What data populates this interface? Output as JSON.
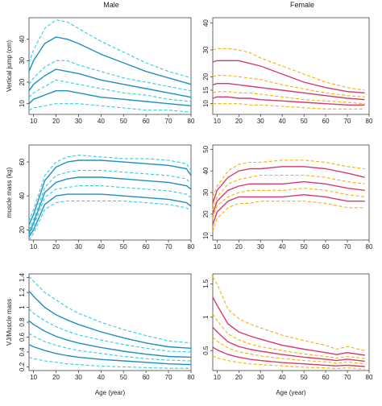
{
  "columns": {
    "male": "Male",
    "female": "Female"
  },
  "colors": {
    "male_solid": "#1f8fc0",
    "male_dashed": "#2ad0e0",
    "female_solid": "#d63a6e",
    "female_dashed": "#f2b400"
  },
  "chart_data": [
    {
      "type": "line",
      "panel": "male-vertical-jump",
      "ylabel": "Vertical jump (cm)",
      "xlabel": "",
      "xlim": [
        8,
        80
      ],
      "ylim": [
        5,
        50
      ],
      "xticks": [
        10,
        20,
        30,
        40,
        50,
        60,
        70,
        80
      ],
      "yticks": [
        10,
        20,
        30,
        40
      ],
      "x": [
        8,
        10,
        15,
        20,
        25,
        30,
        40,
        50,
        60,
        70,
        80
      ],
      "series": [
        {
          "style": "dashed",
          "values": [
            29,
            35,
            45,
            49,
            48,
            45,
            39,
            34,
            29,
            25,
            22
          ]
        },
        {
          "style": "solid",
          "values": [
            25,
            30,
            38,
            41,
            40,
            38,
            33,
            29,
            25,
            22,
            19
          ]
        },
        {
          "style": "dashed",
          "values": [
            19,
            22,
            27,
            30,
            30,
            28,
            25,
            22,
            20,
            18,
            16
          ]
        },
        {
          "style": "solid",
          "values": [
            16,
            19,
            23,
            26,
            25,
            24,
            21,
            19,
            17,
            15,
            13
          ]
        },
        {
          "style": "dashed",
          "values": [
            13,
            15,
            18,
            21,
            20,
            19,
            17,
            15,
            14,
            12,
            11
          ]
        },
        {
          "style": "solid",
          "values": [
            10,
            12,
            14,
            16,
            16,
            15,
            13,
            12,
            11,
            10,
            9
          ]
        },
        {
          "style": "dashed",
          "values": [
            7,
            8,
            9,
            10,
            10,
            10,
            9,
            8,
            7,
            7,
            6
          ]
        }
      ]
    },
    {
      "type": "line",
      "panel": "female-vertical-jump",
      "ylabel": "",
      "xlabel": "",
      "xlim": [
        8,
        80
      ],
      "ylim": [
        6,
        42
      ],
      "xticks": [
        10,
        20,
        30,
        40,
        50,
        60,
        70,
        80
      ],
      "yticks": [
        10,
        15,
        20,
        30,
        40
      ],
      "ytick_labels": [
        "10",
        "15",
        "20",
        "30",
        "40"
      ],
      "x": [
        8,
        10,
        15,
        20,
        25,
        30,
        40,
        50,
        60,
        70,
        78
      ],
      "series": [
        {
          "style": "dashed",
          "values": [
            30,
            30.5,
            30.5,
            30,
            29,
            27,
            24,
            21,
            18,
            16,
            15
          ]
        },
        {
          "style": "solid",
          "values": [
            25.5,
            26,
            26,
            26,
            25,
            24,
            21,
            18,
            16,
            14.5,
            14
          ]
        },
        {
          "style": "dashed",
          "values": [
            20,
            20.5,
            20.5,
            20,
            19.5,
            19,
            17,
            15.5,
            14,
            13,
            12.5
          ]
        },
        {
          "style": "solid",
          "values": [
            17,
            17.5,
            17.5,
            17,
            16.5,
            16,
            15,
            14,
            13,
            12,
            11.5
          ]
        },
        {
          "style": "dashed",
          "values": [
            14,
            14.5,
            14.5,
            14,
            14,
            13.5,
            12.5,
            11.5,
            11,
            10.5,
            10
          ]
        },
        {
          "style": "solid",
          "values": [
            12,
            12.5,
            12.5,
            12,
            12,
            11.5,
            11,
            10.5,
            10,
            9.5,
            9.5
          ]
        },
        {
          "style": "dashed",
          "values": [
            10,
            10,
            10,
            10,
            9.5,
            9.5,
            9,
            8.5,
            8,
            8,
            8
          ]
        }
      ]
    },
    {
      "type": "line",
      "panel": "male-muscle-mass",
      "ylabel": "muscle mass (kg)",
      "xlabel": "",
      "xlim": [
        8,
        80
      ],
      "ylim": [
        14,
        70
      ],
      "xticks": [
        10,
        20,
        30,
        40,
        50,
        60,
        70,
        80
      ],
      "yticks": [
        20,
        40,
        60
      ],
      "x": [
        8,
        10,
        15,
        20,
        25,
        30,
        40,
        50,
        60,
        70,
        78,
        80
      ],
      "series": [
        {
          "style": "dashed",
          "values": [
            25,
            32,
            52,
            60,
            63,
            64,
            63,
            62,
            62,
            61,
            59,
            55
          ]
        },
        {
          "style": "solid",
          "values": [
            23,
            29,
            49,
            57,
            60,
            61,
            61,
            60,
            59,
            58,
            56,
            52
          ]
        },
        {
          "style": "dashed",
          "values": [
            20,
            26,
            45,
            52,
            54,
            55,
            55,
            54,
            53,
            52,
            50,
            47
          ]
        },
        {
          "style": "solid",
          "values": [
            18,
            24,
            42,
            48,
            50,
            51,
            51,
            50,
            49,
            48,
            46,
            44
          ]
        },
        {
          "style": "dashed",
          "values": [
            17,
            22,
            39,
            44,
            45,
            46,
            46,
            45,
            44,
            43,
            41,
            39
          ]
        },
        {
          "style": "solid",
          "values": [
            16,
            20,
            35,
            40,
            41,
            41,
            41,
            40,
            39,
            38,
            36,
            34
          ]
        },
        {
          "style": "dashed",
          "values": [
            14,
            18,
            32,
            36,
            37,
            37,
            37,
            37,
            36,
            35,
            33,
            31
          ]
        }
      ]
    },
    {
      "type": "line",
      "panel": "female-muscle-mass",
      "ylabel": "",
      "xlabel": "",
      "xlim": [
        8,
        80
      ],
      "ylim": [
        8,
        52
      ],
      "xticks": [
        10,
        20,
        30,
        40,
        50,
        60,
        70,
        80
      ],
      "yticks": [
        10,
        20,
        30,
        40,
        50
      ],
      "x": [
        8,
        10,
        15,
        20,
        25,
        30,
        40,
        50,
        60,
        70,
        78
      ],
      "series": [
        {
          "style": "dashed",
          "values": [
            28,
            33,
            40,
            43,
            44,
            44,
            45,
            45,
            44,
            42,
            41
          ]
        },
        {
          "style": "solid",
          "values": [
            25,
            31,
            37,
            40,
            41,
            41,
            42,
            42,
            41,
            39,
            37
          ]
        },
        {
          "style": "dashed",
          "values": [
            22,
            28,
            34,
            36,
            37,
            38,
            38,
            38,
            37,
            35,
            34
          ]
        },
        {
          "style": "solid",
          "values": [
            20,
            26,
            31,
            33,
            34,
            34,
            34,
            35,
            34,
            32,
            31
          ]
        },
        {
          "style": "dashed",
          "values": [
            18,
            24,
            28,
            30,
            31,
            31,
            31,
            32,
            31,
            29,
            28
          ]
        },
        {
          "style": "solid",
          "values": [
            15,
            21,
            26,
            28,
            28,
            28,
            28,
            29,
            28,
            26,
            26
          ]
        },
        {
          "style": "dashed",
          "values": [
            12,
            18,
            23,
            25,
            25,
            26,
            26,
            26,
            25,
            23,
            23
          ]
        }
      ]
    },
    {
      "type": "line",
      "panel": "male-vj-muscle-mass",
      "ylabel": "VJ/Muscle mass",
      "xlabel": "Age (year)",
      "xlim": [
        8,
        80
      ],
      "ylim": [
        0.15,
        1.45
      ],
      "xticks": [
        10,
        20,
        30,
        40,
        50,
        60,
        70,
        80
      ],
      "yticks": [
        0.2,
        0.4,
        0.6,
        0.8,
        1.0,
        1.2,
        1.4
      ],
      "x": [
        8,
        10,
        15,
        20,
        25,
        30,
        40,
        50,
        60,
        70,
        80
      ],
      "series": [
        {
          "style": "dashed",
          "values": [
            1.42,
            1.35,
            1.2,
            1.1,
            1.0,
            0.92,
            0.8,
            0.7,
            0.62,
            0.55,
            0.52
          ]
        },
        {
          "style": "solid",
          "values": [
            1.22,
            1.15,
            1.0,
            0.9,
            0.83,
            0.77,
            0.67,
            0.59,
            0.52,
            0.47,
            0.45
          ]
        },
        {
          "style": "dashed",
          "values": [
            0.98,
            0.92,
            0.82,
            0.74,
            0.68,
            0.63,
            0.56,
            0.5,
            0.45,
            0.41,
            0.4
          ]
        },
        {
          "style": "solid",
          "values": [
            0.82,
            0.77,
            0.68,
            0.61,
            0.56,
            0.52,
            0.46,
            0.41,
            0.37,
            0.34,
            0.33
          ]
        },
        {
          "style": "dashed",
          "values": [
            0.65,
            0.61,
            0.54,
            0.49,
            0.45,
            0.42,
            0.38,
            0.34,
            0.31,
            0.29,
            0.28
          ]
        },
        {
          "style": "solid",
          "values": [
            0.5,
            0.47,
            0.42,
            0.38,
            0.35,
            0.33,
            0.3,
            0.28,
            0.26,
            0.24,
            0.23
          ]
        },
        {
          "style": "dashed",
          "values": [
            0.33,
            0.31,
            0.28,
            0.26,
            0.24,
            0.23,
            0.21,
            0.2,
            0.19,
            0.18,
            0.18
          ]
        }
      ]
    },
    {
      "type": "line",
      "panel": "female-vj-muscle-mass",
      "ylabel": "",
      "xlabel": "Age (year)",
      "xlim": [
        8,
        80
      ],
      "ylim": [
        0.2,
        1.65
      ],
      "xticks": [
        10,
        20,
        30,
        40,
        50,
        60,
        70,
        80
      ],
      "yticks": [
        0.5,
        1.0,
        1.5
      ],
      "x": [
        8,
        10,
        15,
        20,
        25,
        30,
        40,
        50,
        60,
        65,
        70,
        78
      ],
      "series": [
        {
          "style": "dashed",
          "values": [
            1.6,
            1.5,
            1.12,
            0.98,
            0.9,
            0.84,
            0.73,
            0.65,
            0.58,
            0.52,
            0.56,
            0.5
          ]
        },
        {
          "style": "solid",
          "values": [
            1.3,
            1.18,
            0.9,
            0.78,
            0.72,
            0.67,
            0.58,
            0.52,
            0.47,
            0.44,
            0.47,
            0.43
          ]
        },
        {
          "style": "dashed",
          "values": [
            1.05,
            0.95,
            0.75,
            0.66,
            0.6,
            0.56,
            0.5,
            0.45,
            0.41,
            0.39,
            0.41,
            0.38
          ]
        },
        {
          "style": "solid",
          "values": [
            0.85,
            0.78,
            0.63,
            0.56,
            0.52,
            0.49,
            0.44,
            0.4,
            0.37,
            0.35,
            0.37,
            0.34
          ]
        },
        {
          "style": "dashed",
          "values": [
            0.7,
            0.64,
            0.54,
            0.48,
            0.45,
            0.42,
            0.38,
            0.35,
            0.33,
            0.31,
            0.33,
            0.3
          ]
        },
        {
          "style": "solid",
          "values": [
            0.55,
            0.51,
            0.44,
            0.4,
            0.37,
            0.35,
            0.32,
            0.3,
            0.28,
            0.27,
            0.28,
            0.26
          ]
        },
        {
          "style": "dashed",
          "values": [
            0.42,
            0.39,
            0.35,
            0.32,
            0.3,
            0.29,
            0.27,
            0.25,
            0.24,
            0.23,
            0.24,
            0.22
          ]
        }
      ]
    }
  ]
}
